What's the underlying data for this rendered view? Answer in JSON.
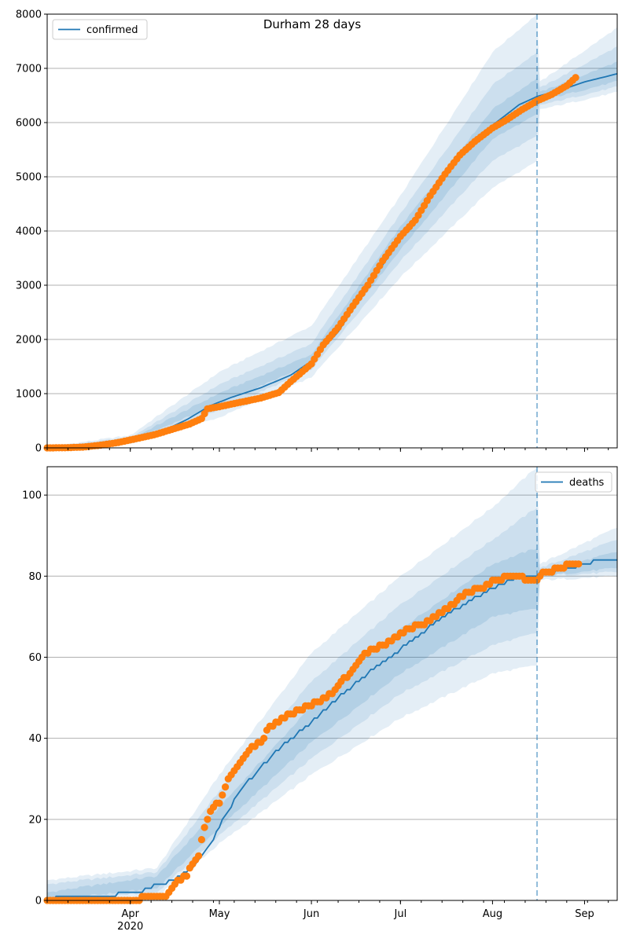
{
  "figure": {
    "title": "Durham 28 days"
  },
  "colors": {
    "line": "#1f77b4",
    "observed": "#ff7f0e",
    "band": "#1f77b4",
    "grid": "#b0b0b0",
    "cutoff": "#1f77b4"
  },
  "x_axis": {
    "ticks": [
      {
        "date": "2020-04-01",
        "label": "Apr"
      },
      {
        "date": "2020-05-01",
        "label": "May"
      },
      {
        "date": "2020-06-01",
        "label": "Jun"
      },
      {
        "date": "2020-07-01",
        "label": "Jul"
      },
      {
        "date": "2020-08-01",
        "label": "Aug"
      },
      {
        "date": "2020-09-01",
        "label": "Sep"
      }
    ],
    "year_label": "2020",
    "xlim": [
      "2020-03-04",
      "2020-09-12"
    ],
    "cutoff_date": "2020-08-16"
  },
  "chart_data": [
    {
      "type": "line",
      "legend": "confirmed",
      "legend_position": "top-left",
      "ylim": [
        0,
        8000
      ],
      "yticks": [
        0,
        1000,
        2000,
        3000,
        4000,
        5000,
        6000,
        7000,
        8000
      ],
      "grid": "horizontal",
      "model_curve": [
        [
          "2020-03-04",
          0
        ],
        [
          "2020-03-15",
          10
        ],
        [
          "2020-03-25",
          60
        ],
        [
          "2020-04-01",
          140
        ],
        [
          "2020-04-10",
          260
        ],
        [
          "2020-04-20",
          520
        ],
        [
          "2020-04-28",
          780
        ],
        [
          "2020-05-05",
          930
        ],
        [
          "2020-05-15",
          1110
        ],
        [
          "2020-05-25",
          1340
        ],
        [
          "2020-06-01",
          1600
        ],
        [
          "2020-06-10",
          2140
        ],
        [
          "2020-06-20",
          2980
        ],
        [
          "2020-07-01",
          3850
        ],
        [
          "2020-07-10",
          4550
        ],
        [
          "2020-07-20",
          5300
        ],
        [
          "2020-08-01",
          5950
        ],
        [
          "2020-08-10",
          6330
        ],
        [
          "2020-08-16",
          6480
        ],
        [
          "2020-08-25",
          6620
        ],
        [
          "2020-09-01",
          6750
        ],
        [
          "2020-09-12",
          6900
        ]
      ],
      "bands": [
        {
          "level": "outer",
          "lower": [
            [
              "2020-03-04",
              0
            ],
            [
              "2020-04-01",
              70
            ],
            [
              "2020-05-01",
              560
            ],
            [
              "2020-06-01",
              1300
            ],
            [
              "2020-07-01",
              3150
            ],
            [
              "2020-08-01",
              4800
            ],
            [
              "2020-08-16",
              5280
            ],
            [
              "2020-08-17",
              6240
            ],
            [
              "2020-09-12",
              6560
            ]
          ],
          "upper": [
            [
              "2020-03-04",
              20
            ],
            [
              "2020-04-01",
              230
            ],
            [
              "2020-05-01",
              1400
            ],
            [
              "2020-06-01",
              2250
            ],
            [
              "2020-07-01",
              4650
            ],
            [
              "2020-08-01",
              7300
            ],
            [
              "2020-08-16",
              8000
            ],
            [
              "2020-08-17",
              6750
            ],
            [
              "2020-09-12",
              7750
            ]
          ]
        },
        {
          "level": "middle",
          "lower": [
            [
              "2020-03-04",
              0
            ],
            [
              "2020-04-01",
              100
            ],
            [
              "2020-05-01",
              700
            ],
            [
              "2020-06-01",
              1440
            ],
            [
              "2020-07-01",
              3450
            ],
            [
              "2020-08-01",
              5300
            ],
            [
              "2020-08-16",
              5750
            ],
            [
              "2020-08-17",
              6320
            ],
            [
              "2020-09-12",
              6660
            ]
          ],
          "upper": [
            [
              "2020-03-04",
              12
            ],
            [
              "2020-04-01",
              190
            ],
            [
              "2020-05-01",
              1170
            ],
            [
              "2020-06-01",
              1920
            ],
            [
              "2020-07-01",
              4320
            ],
            [
              "2020-08-01",
              6700
            ],
            [
              "2020-08-16",
              7300
            ],
            [
              "2020-08-17",
              6640
            ],
            [
              "2020-09-12",
              7400
            ]
          ]
        },
        {
          "level": "inner",
          "lower": [
            [
              "2020-03-04",
              0
            ],
            [
              "2020-04-01",
              120
            ],
            [
              "2020-05-01",
              820
            ],
            [
              "2020-06-01",
              1540
            ],
            [
              "2020-07-01",
              3660
            ],
            [
              "2020-08-01",
              5700
            ],
            [
              "2020-08-16",
              6150
            ],
            [
              "2020-08-17",
              6400
            ],
            [
              "2020-09-12",
              6760
            ]
          ],
          "upper": [
            [
              "2020-03-04",
              6
            ],
            [
              "2020-04-01",
              160
            ],
            [
              "2020-05-01",
              1010
            ],
            [
              "2020-06-01",
              1720
            ],
            [
              "2020-07-01",
              4080
            ],
            [
              "2020-08-01",
              6250
            ],
            [
              "2020-08-16",
              6820
            ],
            [
              "2020-08-17",
              6560
            ],
            [
              "2020-09-12",
              7120
            ]
          ]
        }
      ],
      "observed": [
        [
          "2020-03-04",
          0
        ],
        [
          "2020-03-10",
          2
        ],
        [
          "2020-03-16",
          15
        ],
        [
          "2020-03-22",
          50
        ],
        [
          "2020-03-28",
          100
        ],
        [
          "2020-04-03",
          170
        ],
        [
          "2020-04-09",
          240
        ],
        [
          "2020-04-15",
          340
        ],
        [
          "2020-04-21",
          440
        ],
        [
          "2020-04-25",
          540
        ],
        [
          "2020-04-27",
          720
        ],
        [
          "2020-05-01",
          760
        ],
        [
          "2020-05-08",
          840
        ],
        [
          "2020-05-15",
          920
        ],
        [
          "2020-05-21",
          1020
        ],
        [
          "2020-05-25",
          1220
        ],
        [
          "2020-06-01",
          1550
        ],
        [
          "2020-06-05",
          1900
        ],
        [
          "2020-06-10",
          2220
        ],
        [
          "2020-06-15",
          2620
        ],
        [
          "2020-06-20",
          3000
        ],
        [
          "2020-06-25",
          3450
        ],
        [
          "2020-07-01",
          3900
        ],
        [
          "2020-07-06",
          4200
        ],
        [
          "2020-07-11",
          4650
        ],
        [
          "2020-07-16",
          5050
        ],
        [
          "2020-07-21",
          5400
        ],
        [
          "2020-07-26",
          5650
        ],
        [
          "2020-08-01",
          5900
        ],
        [
          "2020-08-06",
          6060
        ],
        [
          "2020-08-11",
          6240
        ],
        [
          "2020-08-16",
          6400
        ],
        [
          "2020-08-21",
          6520
        ],
        [
          "2020-08-26",
          6680
        ],
        [
          "2020-08-29",
          6830
        ]
      ]
    },
    {
      "type": "line",
      "legend": "deaths",
      "legend_position": "top-right",
      "ylim": [
        0,
        107
      ],
      "yticks": [
        0,
        20,
        40,
        60,
        80,
        100
      ],
      "grid": "horizontal",
      "model_curve": [
        [
          "2020-03-04",
          0
        ],
        [
          "2020-03-09",
          1
        ],
        [
          "2020-03-27",
          1
        ],
        [
          "2020-03-28",
          2
        ],
        [
          "2020-04-05",
          2
        ],
        [
          "2020-04-06",
          3
        ],
        [
          "2020-04-12",
          4
        ],
        [
          "2020-04-18",
          6
        ],
        [
          "2020-04-23",
          9
        ],
        [
          "2020-04-28",
          14
        ],
        [
          "2020-05-03",
          21
        ],
        [
          "2020-05-08",
          27
        ],
        [
          "2020-05-15",
          33
        ],
        [
          "2020-05-22",
          38
        ],
        [
          "2020-06-01",
          44
        ],
        [
          "2020-06-10",
          50
        ],
        [
          "2020-06-20",
          56
        ],
        [
          "2020-07-01",
          62
        ],
        [
          "2020-07-10",
          67
        ],
        [
          "2020-07-20",
          72
        ],
        [
          "2020-08-01",
          77
        ],
        [
          "2020-08-10",
          80
        ],
        [
          "2020-08-16",
          80
        ],
        [
          "2020-08-17",
          81
        ],
        [
          "2020-08-28",
          82
        ],
        [
          "2020-09-01",
          83
        ],
        [
          "2020-09-07",
          84
        ],
        [
          "2020-09-12",
          84
        ]
      ],
      "bands": [
        {
          "level": "outer",
          "lower": [
            [
              "2020-03-04",
              0
            ],
            [
              "2020-04-10",
              1
            ],
            [
              "2020-05-01",
              14
            ],
            [
              "2020-06-01",
              31
            ],
            [
              "2020-07-01",
              45
            ],
            [
              "2020-08-01",
              56
            ],
            [
              "2020-08-16",
              58
            ],
            [
              "2020-08-17",
              79
            ],
            [
              "2020-09-12",
              80
            ]
          ],
          "upper": [
            [
              "2020-03-04",
              5
            ],
            [
              "2020-04-10",
              8
            ],
            [
              "2020-05-01",
              31
            ],
            [
              "2020-06-01",
              61
            ],
            [
              "2020-07-01",
              80
            ],
            [
              "2020-08-01",
              97
            ],
            [
              "2020-08-16",
              107
            ],
            [
              "2020-08-17",
              83
            ],
            [
              "2020-09-12",
              92
            ]
          ]
        },
        {
          "level": "middle",
          "lower": [
            [
              "2020-03-04",
              0
            ],
            [
              "2020-04-10",
              2
            ],
            [
              "2020-05-01",
              16
            ],
            [
              "2020-06-01",
              35
            ],
            [
              "2020-07-01",
              51
            ],
            [
              "2020-08-01",
              63
            ],
            [
              "2020-08-16",
              66
            ],
            [
              "2020-08-17",
              80
            ],
            [
              "2020-09-12",
              81
            ]
          ],
          "upper": [
            [
              "2020-03-04",
              4
            ],
            [
              "2020-04-10",
              7
            ],
            [
              "2020-05-01",
              27
            ],
            [
              "2020-06-01",
              54
            ],
            [
              "2020-07-01",
              73
            ],
            [
              "2020-08-01",
              89
            ],
            [
              "2020-08-16",
              97
            ],
            [
              "2020-08-17",
              82
            ],
            [
              "2020-09-12",
              89
            ]
          ]
        },
        {
          "level": "inner",
          "lower": [
            [
              "2020-03-04",
              0
            ],
            [
              "2020-04-10",
              3
            ],
            [
              "2020-05-01",
              18
            ],
            [
              "2020-06-01",
              39
            ],
            [
              "2020-07-01",
              56
            ],
            [
              "2020-08-01",
              70
            ],
            [
              "2020-08-16",
              72
            ],
            [
              "2020-08-17",
              80
            ],
            [
              "2020-09-12",
              82
            ]
          ],
          "upper": [
            [
              "2020-03-04",
              2
            ],
            [
              "2020-04-10",
              6
            ],
            [
              "2020-05-01",
              23
            ],
            [
              "2020-06-01",
              48
            ],
            [
              "2020-07-01",
              67
            ],
            [
              "2020-08-01",
              83
            ],
            [
              "2020-08-16",
              87
            ],
            [
              "2020-08-17",
              81
            ],
            [
              "2020-09-12",
              86
            ]
          ]
        }
      ],
      "observed": [
        [
          "2020-03-04",
          0
        ],
        [
          "2020-03-20",
          0
        ],
        [
          "2020-04-04",
          0
        ],
        [
          "2020-04-05",
          1
        ],
        [
          "2020-04-13",
          1
        ],
        [
          "2020-04-14",
          2
        ],
        [
          "2020-04-16",
          4
        ],
        [
          "2020-04-18",
          5
        ],
        [
          "2020-04-20",
          6
        ],
        [
          "2020-04-22",
          9
        ],
        [
          "2020-04-24",
          11
        ],
        [
          "2020-04-25",
          15
        ],
        [
          "2020-04-27",
          20
        ],
        [
          "2020-04-29",
          23
        ],
        [
          "2020-05-01",
          24
        ],
        [
          "2020-05-03",
          28
        ],
        [
          "2020-05-05",
          31
        ],
        [
          "2020-05-08",
          34
        ],
        [
          "2020-05-11",
          37
        ],
        [
          "2020-05-15",
          39
        ],
        [
          "2020-05-18",
          43
        ],
        [
          "2020-05-21",
          44
        ],
        [
          "2020-05-25",
          46
        ],
        [
          "2020-05-28",
          47
        ],
        [
          "2020-06-03",
          49
        ],
        [
          "2020-06-08",
          51
        ],
        [
          "2020-06-11",
          54
        ],
        [
          "2020-06-14",
          56
        ],
        [
          "2020-06-18",
          60
        ],
        [
          "2020-06-22",
          62
        ],
        [
          "2020-06-26",
          63
        ],
        [
          "2020-06-30",
          65
        ],
        [
          "2020-07-03",
          67
        ],
        [
          "2020-07-09",
          68
        ],
        [
          "2020-07-14",
          71
        ],
        [
          "2020-07-19",
          73
        ],
        [
          "2020-07-23",
          76
        ],
        [
          "2020-07-29",
          77
        ],
        [
          "2020-08-02",
          79
        ],
        [
          "2020-08-07",
          80
        ],
        [
          "2020-08-16",
          79
        ],
        [
          "2020-08-18",
          81
        ],
        [
          "2020-08-25",
          82
        ],
        [
          "2020-08-27",
          83
        ],
        [
          "2020-08-30",
          83
        ]
      ]
    }
  ]
}
